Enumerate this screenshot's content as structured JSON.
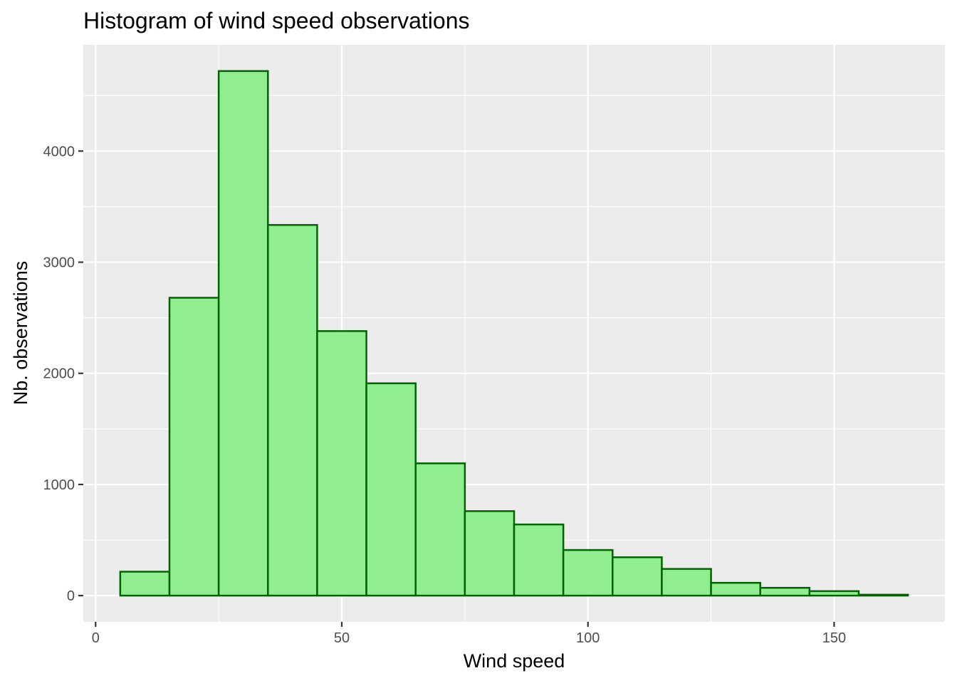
{
  "chart_data": {
    "type": "bar",
    "title": "Histogram of wind speed observations",
    "xlabel": "Wind speed",
    "ylabel": "Nb. observations",
    "bins": [
      {
        "start": 5,
        "end": 15,
        "count": 215
      },
      {
        "start": 15,
        "end": 25,
        "count": 2680
      },
      {
        "start": 25,
        "end": 35,
        "count": 4720
      },
      {
        "start": 35,
        "end": 45,
        "count": 3335
      },
      {
        "start": 45,
        "end": 55,
        "count": 2380
      },
      {
        "start": 55,
        "end": 65,
        "count": 1910
      },
      {
        "start": 65,
        "end": 75,
        "count": 1190
      },
      {
        "start": 75,
        "end": 85,
        "count": 760
      },
      {
        "start": 85,
        "end": 95,
        "count": 640
      },
      {
        "start": 95,
        "end": 105,
        "count": 410
      },
      {
        "start": 105,
        "end": 115,
        "count": 345
      },
      {
        "start": 115,
        "end": 125,
        "count": 240
      },
      {
        "start": 125,
        "end": 135,
        "count": 115
      },
      {
        "start": 135,
        "end": 145,
        "count": 70
      },
      {
        "start": 145,
        "end": 155,
        "count": 40
      },
      {
        "start": 155,
        "end": 165,
        "count": 8
      }
    ],
    "xlim": [
      -2.5,
      172.5
    ],
    "ylim": [
      -236,
      4956
    ],
    "xticks": [
      0,
      50,
      100,
      150
    ],
    "yticks": [
      0,
      1000,
      2000,
      3000,
      4000
    ],
    "xtick_labels": [
      "0",
      "50",
      "100",
      "150"
    ],
    "ytick_labels": [
      "0",
      "1000",
      "2000",
      "3000",
      "4000"
    ],
    "grid": true,
    "legend": "none",
    "colors": {
      "panel_background": "#ebebeb",
      "grid": "#ffffff",
      "bar_fill": "#90ee90",
      "bar_outline": "#006400",
      "tick_label": "#4d4d4d",
      "tick_mark": "#333333"
    }
  }
}
